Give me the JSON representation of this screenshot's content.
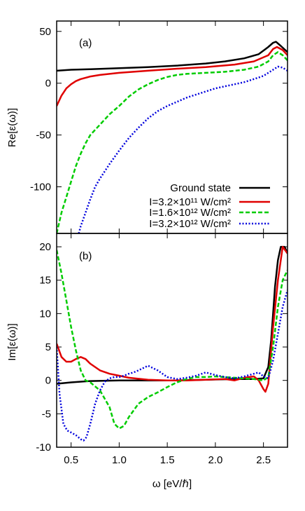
{
  "chart_data": [
    {
      "type": "line",
      "panel_label": "(a)",
      "xlabel": "",
      "ylabel": "Re[ε(ω)]",
      "xlim": [
        0.35,
        2.75
      ],
      "ylim": [
        -145,
        60
      ],
      "yticks": [
        {
          "v": 50,
          "label": "50"
        },
        {
          "v": 0,
          "label": "0"
        },
        {
          "v": -50,
          "label": "-50"
        },
        {
          "v": -100,
          "label": "-100"
        }
      ],
      "legend": {
        "position": "bottom-right"
      },
      "series": [
        {
          "name": "Ground state",
          "color": "#000000",
          "dash": "solid",
          "x": [
            0.35,
            0.5,
            0.7,
            1.0,
            1.3,
            1.6,
            1.9,
            2.1,
            2.3,
            2.45,
            2.55,
            2.6,
            2.63,
            2.68,
            2.75
          ],
          "y": [
            12,
            13,
            13.5,
            14.5,
            15.5,
            17,
            19,
            21,
            24,
            28,
            35,
            39,
            40,
            36,
            30
          ]
        },
        {
          "name": "I=3.2×10¹¹ W/cm²",
          "color": "#e00000",
          "dash": "solid",
          "x": [
            0.35,
            0.4,
            0.45,
            0.5,
            0.55,
            0.6,
            0.7,
            0.8,
            1.0,
            1.3,
            1.6,
            1.9,
            2.2,
            2.4,
            2.55,
            2.6,
            2.64,
            2.7,
            2.75
          ],
          "y": [
            -22,
            -12,
            -5,
            -1,
            2,
            4,
            6.5,
            8,
            10,
            12,
            14,
            15.5,
            18,
            21,
            27,
            33,
            35,
            32,
            27
          ]
        },
        {
          "name": "I=1.6×10¹² W/cm²",
          "color": "#00cc00",
          "dash": "dashed",
          "x": [
            0.35,
            0.4,
            0.45,
            0.5,
            0.55,
            0.6,
            0.65,
            0.7,
            0.8,
            0.9,
            1.0,
            1.1,
            1.2,
            1.3,
            1.4,
            1.5,
            1.6,
            1.7,
            1.9,
            2.1,
            2.3,
            2.45,
            2.55,
            2.6,
            2.65,
            2.7,
            2.75
          ],
          "y": [
            -145,
            -125,
            -110,
            -95,
            -80,
            -68,
            -58,
            -50,
            -40,
            -30,
            -22,
            -13,
            -6,
            -1,
            3,
            6,
            8,
            9,
            10,
            11,
            13,
            16,
            21,
            27,
            30,
            27,
            22
          ]
        },
        {
          "name": "I=3.2×10¹² W/cm²",
          "color": "#0000dd",
          "dash": "dotted",
          "x": [
            0.58,
            0.6,
            0.65,
            0.7,
            0.75,
            0.8,
            0.85,
            0.9,
            1.0,
            1.1,
            1.2,
            1.3,
            1.4,
            1.5,
            1.6,
            1.7,
            1.8,
            1.9,
            2.0,
            2.1,
            2.2,
            2.3,
            2.4,
            2.5,
            2.55,
            2.6,
            2.65,
            2.7,
            2.75
          ],
          "y": [
            -145,
            -138,
            -125,
            -112,
            -100,
            -92,
            -85,
            -78,
            -65,
            -53,
            -43,
            -34,
            -27,
            -22,
            -18,
            -14,
            -11,
            -8,
            -5,
            -3,
            -1,
            1,
            4,
            7,
            10,
            13,
            16,
            15,
            12
          ]
        }
      ]
    },
    {
      "type": "line",
      "panel_label": "(b)",
      "xlabel": "ω [eV/ℏ]",
      "ylabel": "Im[ε(ω)]",
      "xlim": [
        0.35,
        2.75
      ],
      "ylim": [
        -10,
        22
      ],
      "yticks": [
        {
          "v": 20,
          "label": "20"
        },
        {
          "v": 15,
          "label": "15"
        },
        {
          "v": 10,
          "label": "10"
        },
        {
          "v": 5,
          "label": "5"
        },
        {
          "v": 0,
          "label": "0"
        },
        {
          "v": -5,
          "label": "-5"
        },
        {
          "v": -10,
          "label": "-10"
        }
      ],
      "xticks": [
        {
          "v": 0.5,
          "label": "0.5"
        },
        {
          "v": 1.0,
          "label": "1.0"
        },
        {
          "v": 1.5,
          "label": "1.5"
        },
        {
          "v": 2.0,
          "label": "2.0"
        },
        {
          "v": 2.5,
          "label": "2.5"
        }
      ],
      "series": [
        {
          "name": "Ground state",
          "color": "#000000",
          "dash": "solid",
          "x": [
            0.35,
            0.5,
            0.7,
            1.0,
            1.3,
            1.6,
            1.9,
            2.2,
            2.4,
            2.5,
            2.55,
            2.58,
            2.6,
            2.62,
            2.65,
            2.68,
            2.72,
            2.75
          ],
          "y": [
            -0.5,
            -0.3,
            -0.1,
            0.0,
            0.0,
            0.0,
            0.1,
            0.2,
            0.2,
            0.3,
            2,
            6,
            10,
            14,
            18,
            20,
            20,
            19
          ]
        },
        {
          "name": "I=3.2×10¹¹ W/cm²",
          "color": "#e00000",
          "dash": "solid",
          "x": [
            0.35,
            0.4,
            0.45,
            0.5,
            0.55,
            0.6,
            0.65,
            0.7,
            0.8,
            0.9,
            1.0,
            1.1,
            1.3,
            1.5,
            1.7,
            1.9,
            2.1,
            2.2,
            2.3,
            2.4,
            2.45,
            2.5,
            2.52,
            2.55,
            2.6,
            2.65,
            2.7,
            2.75
          ],
          "y": [
            5.5,
            3.5,
            2.8,
            2.8,
            3.2,
            3.5,
            3.2,
            2.5,
            1.5,
            1.0,
            0.7,
            0.4,
            0.1,
            0.0,
            0.0,
            0.1,
            0.2,
            0.0,
            0.4,
            0.6,
            0.0,
            -1.3,
            -1.7,
            -0.5,
            8,
            15,
            20,
            19
          ]
        },
        {
          "name": "I=1.6×10¹² W/cm²",
          "color": "#00cc00",
          "dash": "dashed",
          "x": [
            0.35,
            0.4,
            0.45,
            0.5,
            0.55,
            0.6,
            0.65,
            0.7,
            0.8,
            0.9,
            0.95,
            1.0,
            1.05,
            1.1,
            1.2,
            1.3,
            1.4,
            1.5,
            1.6,
            1.7,
            1.8,
            1.9,
            2.0,
            2.1,
            2.2,
            2.3,
            2.4,
            2.5,
            2.55,
            2.6,
            2.65,
            2.7,
            2.75
          ],
          "y": [
            19.5,
            16,
            12,
            8,
            4.5,
            1.5,
            0.0,
            -0.3,
            -1.5,
            -4,
            -6.5,
            -7.2,
            -6.8,
            -5.5,
            -3.5,
            -2.5,
            -1.8,
            -1.0,
            -0.3,
            0.2,
            0.5,
            0.5,
            0.6,
            0.5,
            0.4,
            0.3,
            0.2,
            0.0,
            0.5,
            5,
            11,
            15,
            16.5
          ]
        },
        {
          "name": "I=3.2×10¹² W/cm²",
          "color": "#0000dd",
          "dash": "dotted",
          "x": [
            0.35,
            0.38,
            0.42,
            0.46,
            0.5,
            0.55,
            0.6,
            0.63,
            0.66,
            0.7,
            0.75,
            0.8,
            0.85,
            0.9,
            0.95,
            1.0,
            1.05,
            1.1,
            1.15,
            1.2,
            1.3,
            1.4,
            1.5,
            1.6,
            1.7,
            1.8,
            1.9,
            2.0,
            2.1,
            2.2,
            2.3,
            2.4,
            2.45,
            2.5,
            2.55,
            2.6,
            2.65,
            2.7,
            2.75
          ],
          "y": [
            5,
            -2,
            -6.5,
            -7.5,
            -7.8,
            -8.2,
            -8.8,
            -9.0,
            -8.5,
            -6.5,
            -3.5,
            -1.5,
            -0.2,
            0.3,
            0.5,
            0.5,
            0.7,
            1.0,
            1.2,
            1.5,
            2.2,
            1.5,
            0.5,
            0.2,
            0.4,
            0.7,
            1.2,
            0.8,
            0.5,
            0.3,
            0.6,
            1.0,
            1.2,
            0.6,
            0.3,
            3,
            7,
            11,
            13.5
          ]
        }
      ]
    }
  ]
}
